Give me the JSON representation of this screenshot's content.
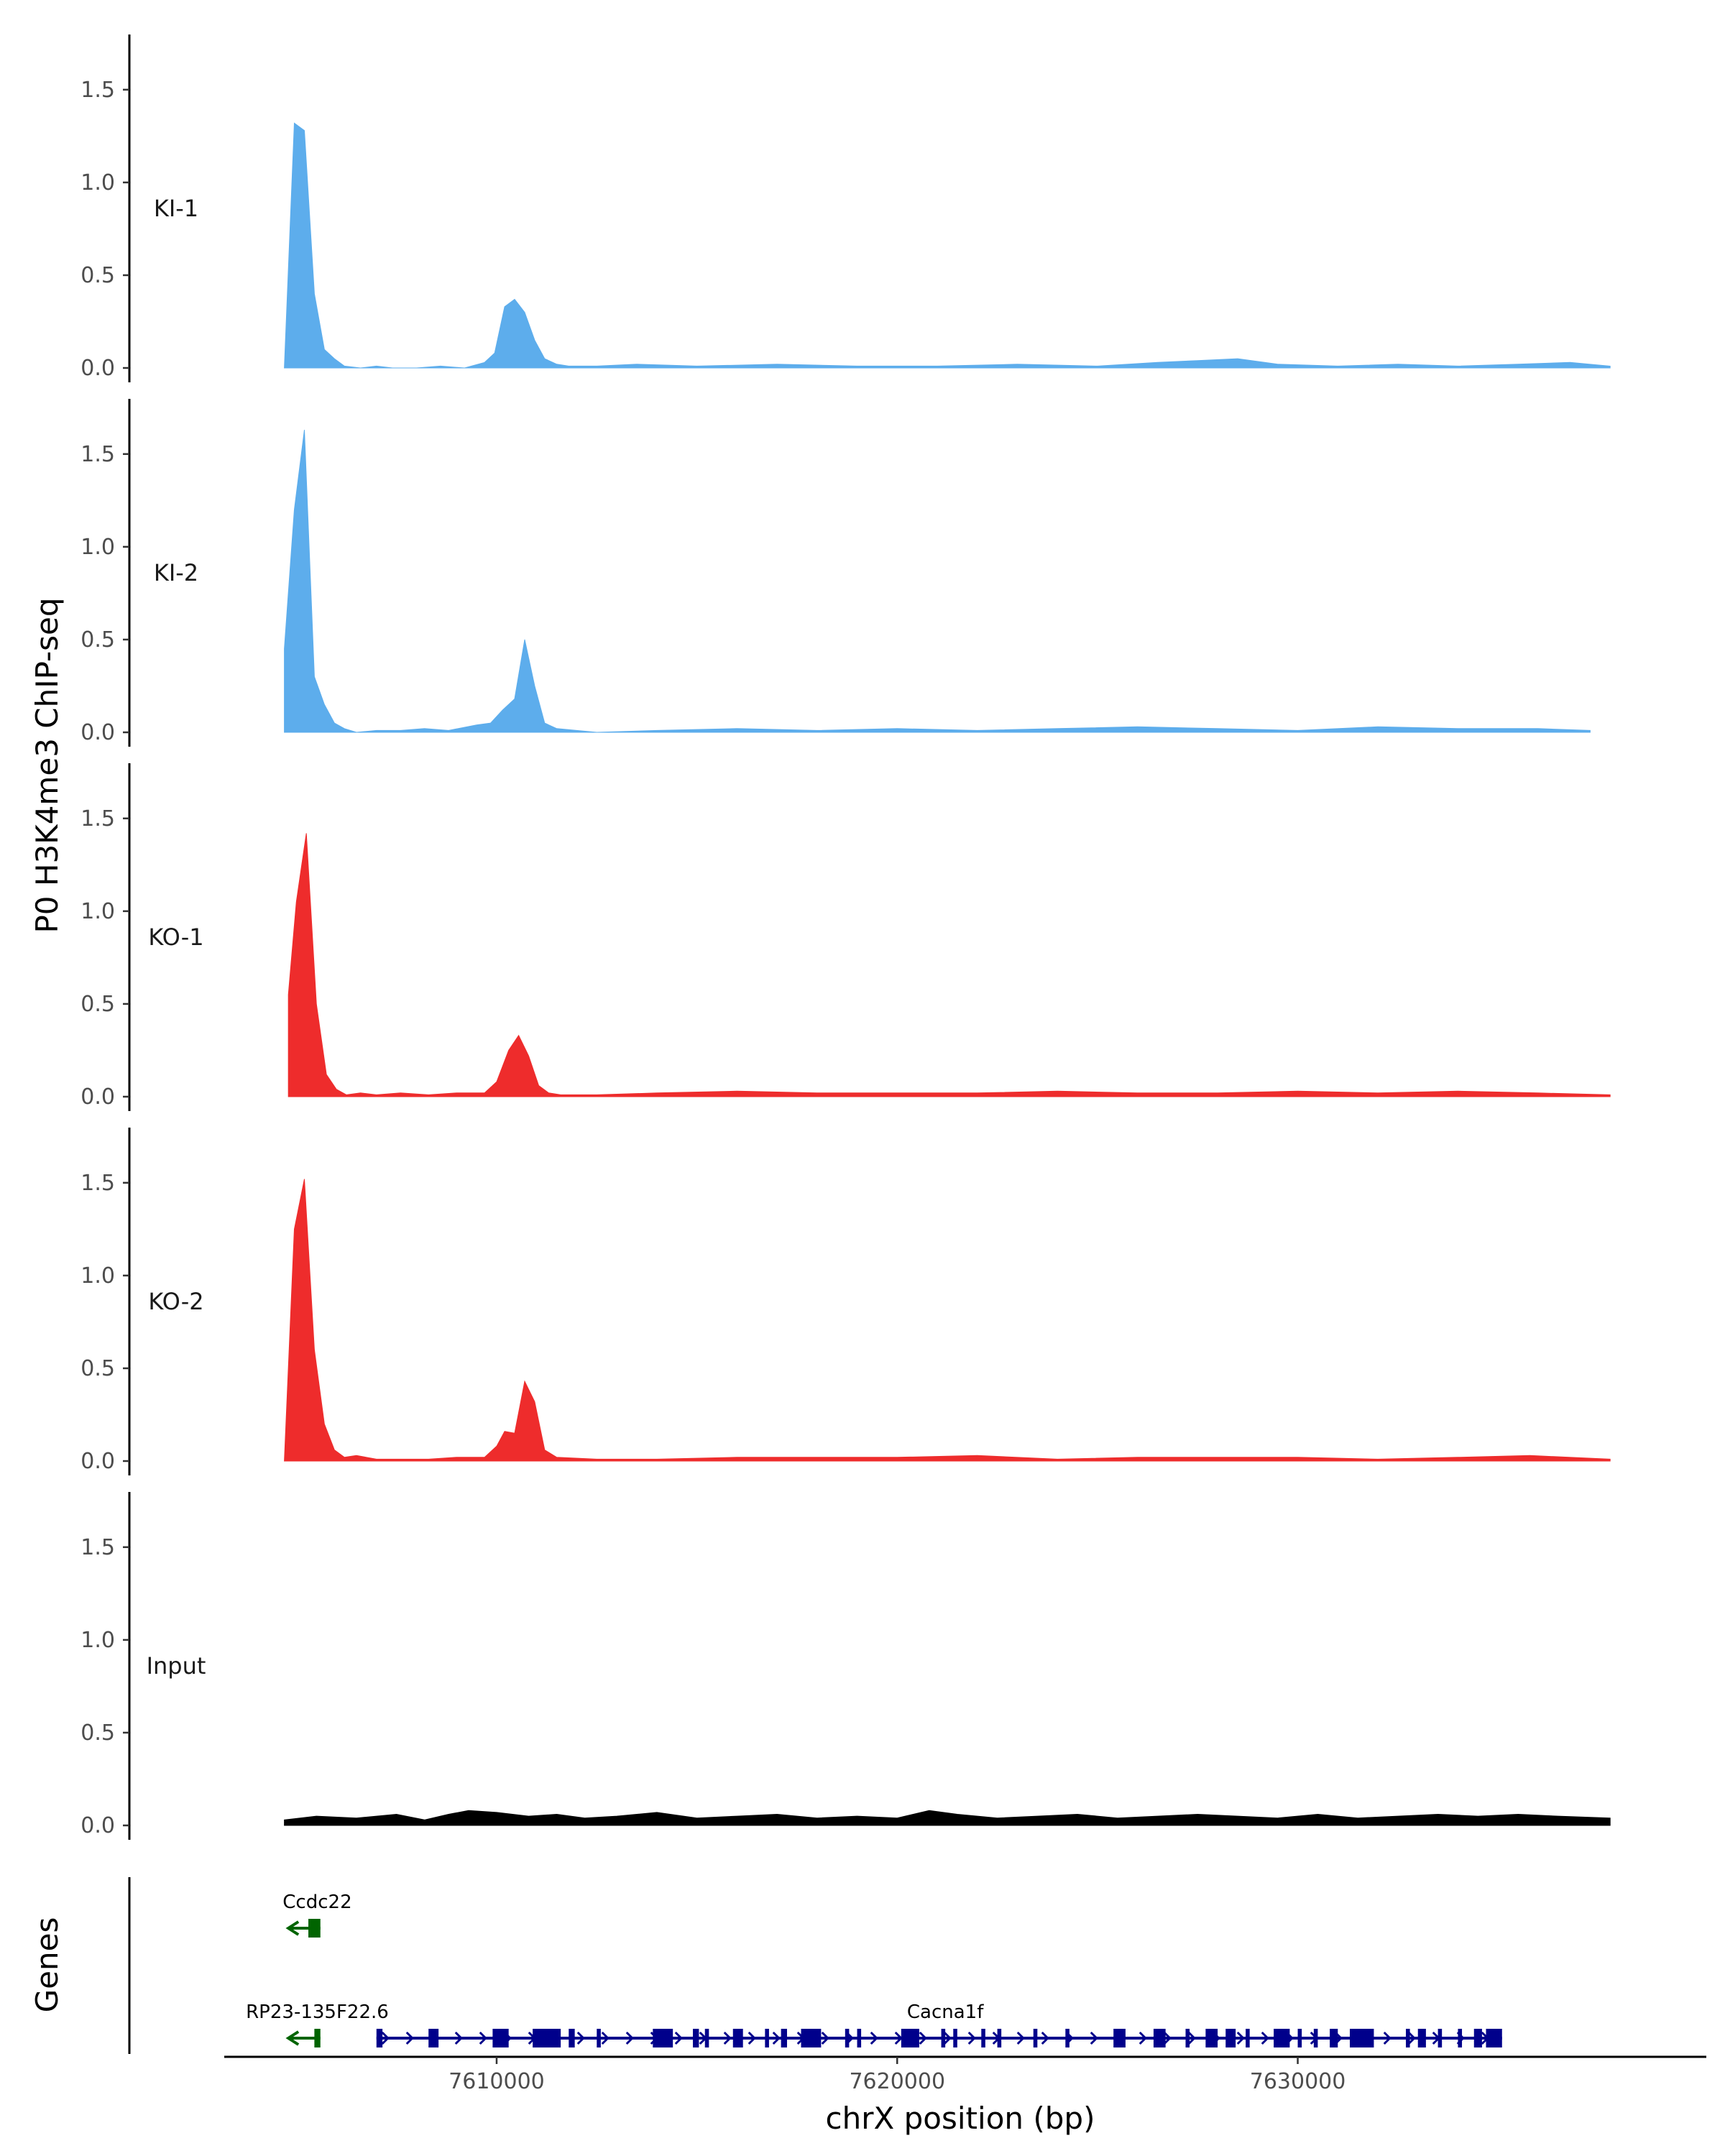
{
  "chart_data": {
    "type": "area",
    "ylabel": "P0 H3K4me3 ChIP-seq",
    "xlabel": "chrX position (bp)",
    "genes_label": "Genes",
    "xlim": [
      7603200,
      7640200
    ],
    "ylim": [
      0,
      1.72
    ],
    "y_ticks": [
      0.0,
      0.5,
      1.0,
      1.5
    ],
    "y_tick_labels": [
      "0.0",
      "0.5",
      "1.0",
      "1.5"
    ],
    "x_ticks": [
      7610000,
      7620000,
      7630000
    ],
    "x_tick_labels": [
      "7610000",
      "7620000",
      "7630000"
    ],
    "grid": false,
    "tracks": [
      {
        "name": "KI-1",
        "color": "#5DADEC",
        "x": [
          7604700,
          7604950,
          7605200,
          7605450,
          7605700,
          7605950,
          7606200,
          7606600,
          7607000,
          7607400,
          7608000,
          7608600,
          7609200,
          7609700,
          7609950,
          7610200,
          7610450,
          7610700,
          7610950,
          7611200,
          7611500,
          7611800,
          7612500,
          7613500,
          7615000,
          7617000,
          7619000,
          7621000,
          7623000,
          7625000,
          7626500,
          7627500,
          7628500,
          7629500,
          7631000,
          7632500,
          7634000,
          7635500,
          7636800,
          7637800
        ],
        "values": [
          0.0,
          1.32,
          1.28,
          0.4,
          0.1,
          0.05,
          0.01,
          0.0,
          0.01,
          0.0,
          0.0,
          0.01,
          0.0,
          0.03,
          0.08,
          0.33,
          0.37,
          0.3,
          0.15,
          0.05,
          0.02,
          0.01,
          0.01,
          0.02,
          0.01,
          0.02,
          0.01,
          0.01,
          0.02,
          0.01,
          0.03,
          0.04,
          0.05,
          0.02,
          0.01,
          0.02,
          0.01,
          0.02,
          0.03,
          0.01
        ]
      },
      {
        "name": "KI-2",
        "color": "#5DADEC",
        "x": [
          7604700,
          7604950,
          7605200,
          7605450,
          7605700,
          7605950,
          7606200,
          7606500,
          7607000,
          7607600,
          7608200,
          7608800,
          7609500,
          7609850,
          7610150,
          7610450,
          7610700,
          7610950,
          7611200,
          7611500,
          7612500,
          7614000,
          7616000,
          7618000,
          7620000,
          7622000,
          7624000,
          7626000,
          7628000,
          7630000,
          7632000,
          7634000,
          7636000,
          7637300
        ],
        "values": [
          0.45,
          1.2,
          1.63,
          0.3,
          0.15,
          0.05,
          0.02,
          0.0,
          0.01,
          0.01,
          0.02,
          0.01,
          0.04,
          0.05,
          0.12,
          0.18,
          0.5,
          0.25,
          0.05,
          0.02,
          0.0,
          0.01,
          0.02,
          0.01,
          0.02,
          0.01,
          0.02,
          0.03,
          0.02,
          0.01,
          0.03,
          0.02,
          0.02,
          0.01
        ]
      },
      {
        "name": "KO-1",
        "color": "#EE2C2C",
        "x": [
          7604800,
          7605000,
          7605250,
          7605500,
          7605750,
          7606000,
          7606250,
          7606600,
          7607000,
          7607600,
          7608300,
          7609000,
          7609700,
          7610000,
          7610300,
          7610550,
          7610800,
          7611050,
          7611300,
          7611600,
          7612500,
          7614000,
          7616000,
          7618000,
          7620000,
          7622000,
          7624000,
          7626000,
          7628000,
          7630000,
          7632000,
          7634000,
          7636000,
          7637800
        ],
        "values": [
          0.55,
          1.05,
          1.42,
          0.5,
          0.12,
          0.04,
          0.01,
          0.02,
          0.01,
          0.02,
          0.01,
          0.02,
          0.02,
          0.08,
          0.25,
          0.33,
          0.22,
          0.06,
          0.02,
          0.01,
          0.01,
          0.02,
          0.03,
          0.02,
          0.02,
          0.02,
          0.03,
          0.02,
          0.02,
          0.03,
          0.02,
          0.03,
          0.02,
          0.01
        ]
      },
      {
        "name": "KO-2",
        "color": "#EE2C2C",
        "x": [
          7604700,
          7604950,
          7605200,
          7605450,
          7605700,
          7605950,
          7606200,
          7606500,
          7607000,
          7607600,
          7608300,
          7609000,
          7609700,
          7610000,
          7610200,
          7610450,
          7610700,
          7610950,
          7611200,
          7611500,
          7612500,
          7614000,
          7616000,
          7618000,
          7620000,
          7622000,
          7624000,
          7626000,
          7628000,
          7630000,
          7632000,
          7634000,
          7635800,
          7637800
        ],
        "values": [
          0.0,
          1.25,
          1.52,
          0.6,
          0.2,
          0.06,
          0.02,
          0.03,
          0.01,
          0.01,
          0.01,
          0.02,
          0.02,
          0.08,
          0.16,
          0.15,
          0.43,
          0.32,
          0.06,
          0.02,
          0.01,
          0.01,
          0.02,
          0.02,
          0.02,
          0.03,
          0.01,
          0.02,
          0.02,
          0.02,
          0.01,
          0.02,
          0.03,
          0.01
        ]
      },
      {
        "name": "Input",
        "color": "#000000",
        "x": [
          7604700,
          7605500,
          7606500,
          7607500,
          7608200,
          7608800,
          7609300,
          7610000,
          7610800,
          7611500,
          7612200,
          7613000,
          7614000,
          7615000,
          7616000,
          7617000,
          7618000,
          7619000,
          7620000,
          7620800,
          7621500,
          7622500,
          7623500,
          7624500,
          7625500,
          7626500,
          7627500,
          7628500,
          7629500,
          7630500,
          7631500,
          7632500,
          7633500,
          7634500,
          7635500,
          7636500,
          7637800
        ],
        "values": [
          0.03,
          0.05,
          0.04,
          0.06,
          0.03,
          0.06,
          0.08,
          0.07,
          0.05,
          0.06,
          0.04,
          0.05,
          0.07,
          0.04,
          0.05,
          0.06,
          0.04,
          0.05,
          0.04,
          0.08,
          0.06,
          0.04,
          0.05,
          0.06,
          0.04,
          0.05,
          0.06,
          0.05,
          0.04,
          0.06,
          0.04,
          0.05,
          0.06,
          0.05,
          0.06,
          0.05,
          0.04
        ]
      }
    ],
    "genes": [
      {
        "name": "Ccdc22",
        "color": "#006400",
        "strand": "-",
        "row": 0,
        "start": 7604800,
        "end": 7605600,
        "exons": [
          [
            7605300,
            7605600
          ]
        ]
      },
      {
        "name": "RP23-135F22.6",
        "color": "#006400",
        "strand": "-",
        "row": 1,
        "start": 7604800,
        "end": 7605600,
        "exons": [
          [
            7605450,
            7605600
          ]
        ]
      },
      {
        "name": "Cacna1f",
        "color": "#00008B",
        "strand": "+",
        "row": 1,
        "start": 7607000,
        "end": 7635100,
        "exons": [
          [
            7607000,
            7607150
          ],
          [
            7608300,
            7608550
          ],
          [
            7609900,
            7610300
          ],
          [
            7610900,
            7611600
          ],
          [
            7611800,
            7611950
          ],
          [
            7612500,
            7612600
          ],
          [
            7613900,
            7614400
          ],
          [
            7614900,
            7615050
          ],
          [
            7615200,
            7615300
          ],
          [
            7615900,
            7616150
          ],
          [
            7616700,
            7616800
          ],
          [
            7617100,
            7617250
          ],
          [
            7617600,
            7618100
          ],
          [
            7618700,
            7618800
          ],
          [
            7619000,
            7619100
          ],
          [
            7620100,
            7620550
          ],
          [
            7621100,
            7621200
          ],
          [
            7621400,
            7621500
          ],
          [
            7622100,
            7622200
          ],
          [
            7622500,
            7622600
          ],
          [
            7623400,
            7623500
          ],
          [
            7624200,
            7624300
          ],
          [
            7625400,
            7625700
          ],
          [
            7626400,
            7626700
          ],
          [
            7627200,
            7627300
          ],
          [
            7627700,
            7628000
          ],
          [
            7628200,
            7628450
          ],
          [
            7628700,
            7628800
          ],
          [
            7629400,
            7629800
          ],
          [
            7630000,
            7630100
          ],
          [
            7630400,
            7630500
          ],
          [
            7630800,
            7631000
          ],
          [
            7631300,
            7631900
          ],
          [
            7632700,
            7632800
          ],
          [
            7633000,
            7633200
          ],
          [
            7633500,
            7633600
          ],
          [
            7634000,
            7634100
          ],
          [
            7634400,
            7634600
          ],
          [
            7634700,
            7635100
          ]
        ]
      }
    ]
  }
}
